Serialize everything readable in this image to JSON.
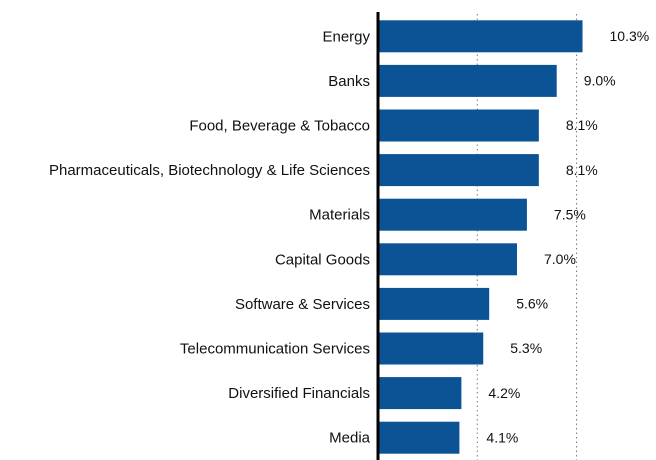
{
  "chart_data": {
    "type": "barh",
    "categories": [
      "Energy",
      "Banks",
      "Food, Beverage & Tobacco",
      "Pharmaceuticals, Biotechnology & Life Sciences",
      "Materials",
      "Capital Goods",
      "Software & Services",
      "Telecommunication Services",
      "Diversified Financials",
      "Media"
    ],
    "values": [
      10.3,
      9.0,
      8.1,
      8.1,
      7.5,
      7.0,
      5.6,
      5.3,
      4.2,
      4.1
    ],
    "value_labels": [
      "10.3%",
      "9.0%",
      "8.1%",
      "8.1%",
      "7.5%",
      "7.0%",
      "5.6%",
      "5.3%",
      "4.2%",
      "4.1%"
    ],
    "color": "#0b5394",
    "xlim": [
      0,
      14
    ],
    "xticks": [
      5,
      10
    ],
    "grid": true
  }
}
